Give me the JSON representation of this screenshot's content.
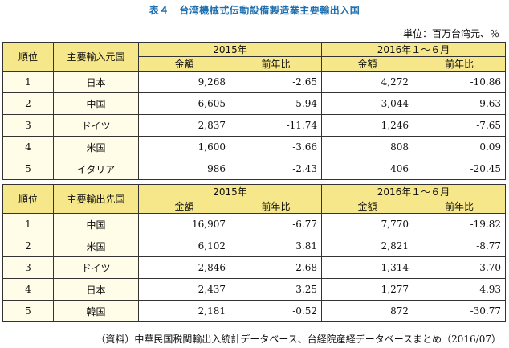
{
  "title": "表４　台湾機械式伝動設備製造業主要輸出入国",
  "unit": "単位：百万台湾元、％",
  "import_table": {
    "col_rank": "順位",
    "col_country": "主要輸入元国",
    "period1": "2015年",
    "period2": "2016年１～６月",
    "sub_amount": "金額",
    "sub_yoy": "前年比",
    "rows": [
      {
        "rank": "1",
        "country": "日本",
        "a1": "9,268",
        "y1": "-2.65",
        "a2": "4,272",
        "y2": "-10.86"
      },
      {
        "rank": "2",
        "country": "中国",
        "a1": "6,605",
        "y1": "-5.94",
        "a2": "3,044",
        "y2": "-9.63"
      },
      {
        "rank": "3",
        "country": "ドイツ",
        "a1": "2,837",
        "y1": "-11.74",
        "a2": "1,246",
        "y2": "-7.65"
      },
      {
        "rank": "4",
        "country": "米国",
        "a1": "1,600",
        "y1": "-3.66",
        "a2": "808",
        "y2": "0.09"
      },
      {
        "rank": "5",
        "country": "イタリア",
        "a1": "986",
        "y1": "-2.43",
        "a2": "406",
        "y2": "-20.45"
      }
    ]
  },
  "export_table": {
    "col_rank": "順位",
    "col_country": "主要輸出先国",
    "period1": "2015年",
    "period2": "2016年１～６月",
    "sub_amount": "金額",
    "sub_yoy": "前年比",
    "rows": [
      {
        "rank": "1",
        "country": "中国",
        "a1": "16,907",
        "y1": "-6.77",
        "a2": "7,770",
        "y2": "-19.82"
      },
      {
        "rank": "2",
        "country": "米国",
        "a1": "6,102",
        "y1": "3.81",
        "a2": "2,821",
        "y2": "-8.77"
      },
      {
        "rank": "3",
        "country": "ドイツ",
        "a1": "2,846",
        "y1": "2.68",
        "a2": "1,314",
        "y2": "-3.70"
      },
      {
        "rank": "4",
        "country": "日本",
        "a1": "2,437",
        "y1": "3.25",
        "a2": "1,277",
        "y2": "4.93"
      },
      {
        "rank": "5",
        "country": "韓国",
        "a1": "2,181",
        "y1": "-0.52",
        "a2": "872",
        "y2": "-30.77"
      }
    ]
  },
  "source": "（資料）中華民国税関輸出入統計データベース、台経院産経データベースまとめ（2016/07）",
  "colors": {
    "header_bg": "#f5e78a",
    "row_bg": "#fffde8",
    "title": "#1d6fb0"
  }
}
